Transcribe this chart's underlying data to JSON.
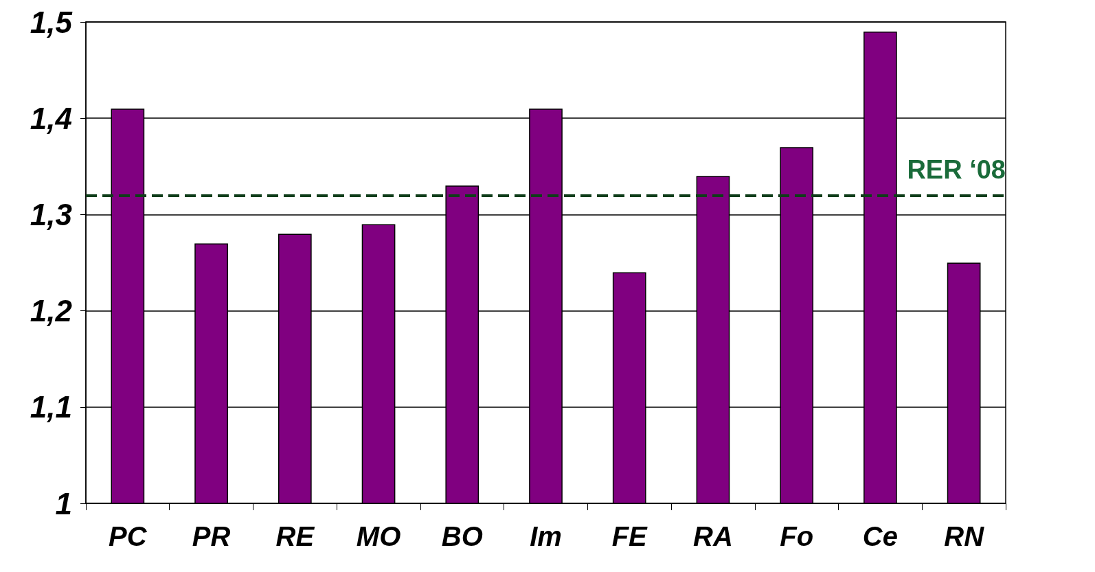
{
  "chart_data": {
    "type": "bar",
    "categories": [
      "PC",
      "PR",
      "RE",
      "MO",
      "BO",
      "Im",
      "FE",
      "RA",
      "Fo",
      "Ce",
      "RN"
    ],
    "values": [
      1.41,
      1.27,
      1.28,
      1.29,
      1.33,
      1.41,
      1.24,
      1.34,
      1.37,
      1.49,
      1.25
    ],
    "color": "#800080",
    "ylim": [
      1,
      1.5
    ],
    "yticks": [
      {
        "value": 1,
        "label": "1"
      },
      {
        "value": 1.1,
        "label": "1,1"
      },
      {
        "value": 1.2,
        "label": "1,2"
      },
      {
        "value": 1.3,
        "label": "1,3"
      },
      {
        "value": 1.4,
        "label": "1,4"
      },
      {
        "value": 1.5,
        "label": "1,5"
      }
    ],
    "grid": "y",
    "ref_lines": [
      {
        "axis": "y",
        "value": 1.32,
        "label": "RER ‘08",
        "color": "#0f3d1a",
        "line_style": "dashed"
      }
    ]
  }
}
